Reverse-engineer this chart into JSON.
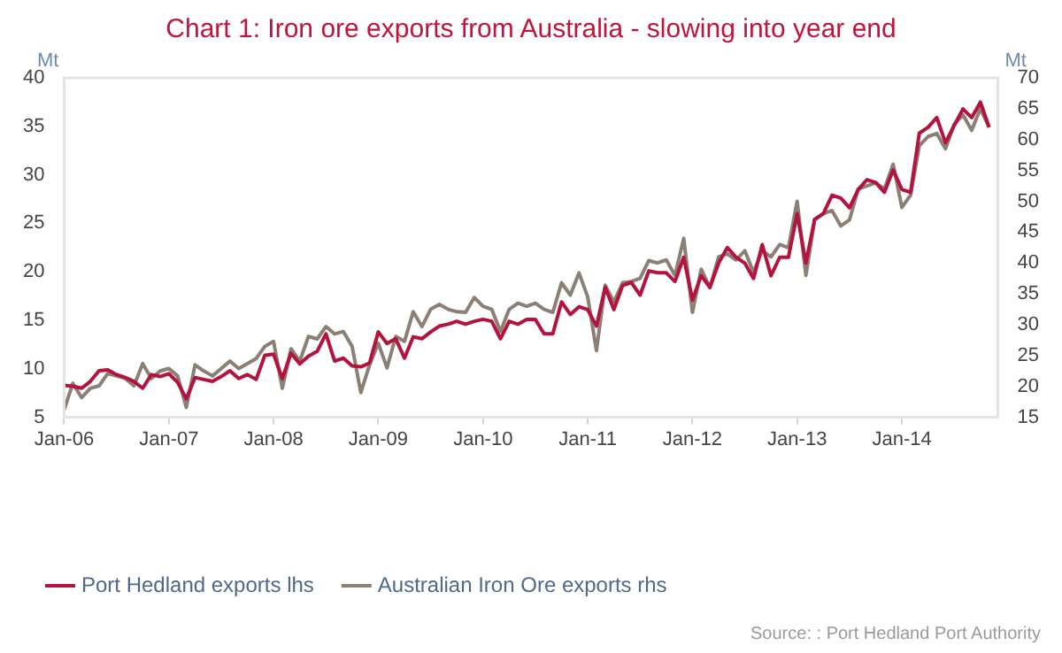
{
  "chart_data": {
    "type": "line",
    "title": "Chart 1: Iron ore exports from Australia - slowing into year end",
    "ylabel": "Mt",
    "y2label": "Mt",
    "x": [
      "2006-01",
      "2006-02",
      "2006-03",
      "2006-04",
      "2006-05",
      "2006-06",
      "2006-07",
      "2006-08",
      "2006-09",
      "2006-10",
      "2006-11",
      "2006-12",
      "2007-01",
      "2007-02",
      "2007-03",
      "2007-04",
      "2007-05",
      "2007-06",
      "2007-07",
      "2007-08",
      "2007-09",
      "2007-10",
      "2007-11",
      "2007-12",
      "2008-01",
      "2008-02",
      "2008-03",
      "2008-04",
      "2008-05",
      "2008-06",
      "2008-07",
      "2008-08",
      "2008-09",
      "2008-10",
      "2008-11",
      "2008-12",
      "2009-01",
      "2009-02",
      "2009-03",
      "2009-04",
      "2009-05",
      "2009-06",
      "2009-07",
      "2009-08",
      "2009-09",
      "2009-10",
      "2009-11",
      "2009-12",
      "2010-01",
      "2010-02",
      "2010-03",
      "2010-04",
      "2010-05",
      "2010-06",
      "2010-07",
      "2010-08",
      "2010-09",
      "2010-10",
      "2010-11",
      "2010-12",
      "2011-01",
      "2011-02",
      "2011-03",
      "2011-04",
      "2011-05",
      "2011-06",
      "2011-07",
      "2011-08",
      "2011-09",
      "2011-10",
      "2011-11",
      "2011-12",
      "2012-01",
      "2012-02",
      "2012-03",
      "2012-04",
      "2012-05",
      "2012-06",
      "2012-07",
      "2012-08",
      "2012-09",
      "2012-10",
      "2012-11",
      "2012-12",
      "2013-01",
      "2013-02",
      "2013-03",
      "2013-04",
      "2013-05",
      "2013-06",
      "2013-07",
      "2013-08",
      "2013-09",
      "2013-10",
      "2013-11",
      "2013-12",
      "2014-01",
      "2014-02",
      "2014-03",
      "2014-04",
      "2014-05",
      "2014-06",
      "2014-07",
      "2014-08",
      "2014-09",
      "2014-10",
      "2014-11"
    ],
    "series": [
      {
        "name": "Port Hedland exports lhs",
        "color": "#b5123e",
        "values": [
          8.3,
          8.2,
          8.0,
          8.7,
          9.8,
          9.9,
          9.4,
          9.1,
          8.7,
          8.0,
          9.4,
          9.2,
          9.5,
          8.6,
          6.9,
          9.1,
          8.9,
          8.7,
          9.2,
          9.8,
          9.0,
          9.4,
          8.9,
          11.4,
          11.5,
          9.0,
          11.6,
          10.5,
          11.3,
          11.8,
          13.6,
          10.8,
          11.1,
          10.3,
          10.2,
          10.6,
          13.8,
          12.6,
          13.1,
          11.1,
          13.3,
          13.1,
          13.8,
          14.4,
          14.6,
          14.9,
          14.6,
          14.9,
          15.1,
          14.9,
          13.1,
          14.9,
          14.6,
          15.1,
          15.1,
          13.6,
          13.6,
          16.9,
          15.6,
          16.4,
          16.1,
          14.4,
          18.4,
          16.1,
          18.6,
          18.9,
          17.6,
          20.1,
          19.9,
          19.9,
          19.0,
          21.5,
          17.1,
          19.6,
          18.4,
          20.9,
          22.5,
          21.5,
          20.9,
          19.3,
          22.8,
          19.6,
          21.5,
          21.5,
          26.0,
          20.9,
          25.4,
          26.0,
          27.9,
          27.6,
          26.6,
          28.5,
          29.5,
          29.2,
          28.2,
          30.5,
          28.5,
          28.2,
          34.3,
          34.9,
          35.9,
          33.3,
          35.1,
          36.8,
          35.9,
          37.5,
          34.9
        ]
      },
      {
        "name": "Australian Iron Ore exports rhs",
        "color": "#8c7f73",
        "axis": "y2",
        "values": [
          16.2,
          20.5,
          18.2,
          19.7,
          20.1,
          22.1,
          21.7,
          21.3,
          20.1,
          23.7,
          21.3,
          22.5,
          22.9,
          21.7,
          16.6,
          23.5,
          22.5,
          21.7,
          22.9,
          24.1,
          22.9,
          23.7,
          24.5,
          26.5,
          27.3,
          19.7,
          26.1,
          24.1,
          28.1,
          27.7,
          29.7,
          28.5,
          28.9,
          26.5,
          19.0,
          23.5,
          27.0,
          23.0,
          28.1,
          27.3,
          32.1,
          29.7,
          32.5,
          33.3,
          32.5,
          32.1,
          32.0,
          34.4,
          33.0,
          32.5,
          28.9,
          32.5,
          33.5,
          33.0,
          33.5,
          32.5,
          32.0,
          36.8,
          34.8,
          38.4,
          34.5,
          25.8,
          36.4,
          33.7,
          36.8,
          37.0,
          37.5,
          40.4,
          40.0,
          40.5,
          38.0,
          44.0,
          32.0,
          39.0,
          36.0,
          41.0,
          41.5,
          40.5,
          42.0,
          38.5,
          42.0,
          41.0,
          43.0,
          42.5,
          50.0,
          38.0,
          47.0,
          48.0,
          48.5,
          46.0,
          47.0,
          52.0,
          52.5,
          53.0,
          52.0,
          56.0,
          49.0,
          51.0,
          59.0,
          60.5,
          61.0,
          58.5,
          62.5,
          64.0,
          61.5,
          65.0,
          62.0
        ]
      }
    ],
    "xlim": [
      "2006-01",
      "2014-12"
    ],
    "xticks": [
      {
        "value": "2006-01",
        "label": "Jan-06"
      },
      {
        "value": "2007-01",
        "label": "Jan-07"
      },
      {
        "value": "2008-01",
        "label": "Jan-08"
      },
      {
        "value": "2009-01",
        "label": "Jan-09"
      },
      {
        "value": "2010-01",
        "label": "Jan-10"
      },
      {
        "value": "2011-01",
        "label": "Jan-11"
      },
      {
        "value": "2012-01",
        "label": "Jan-12"
      },
      {
        "value": "2013-01",
        "label": "Jan-13"
      },
      {
        "value": "2014-01",
        "label": "Jan-14"
      }
    ],
    "ylim": [
      5,
      40
    ],
    "yticks": [
      5,
      10,
      15,
      20,
      25,
      30,
      35,
      40
    ],
    "y2lim": [
      15,
      70
    ],
    "y2ticks": [
      15,
      20,
      25,
      30,
      35,
      40,
      45,
      50,
      55,
      60,
      65,
      70
    ],
    "legend": "bottom left",
    "marker": "none",
    "line_style": "solid",
    "annotations": [
      "Source: : Port Hedland Port Authority"
    ]
  }
}
